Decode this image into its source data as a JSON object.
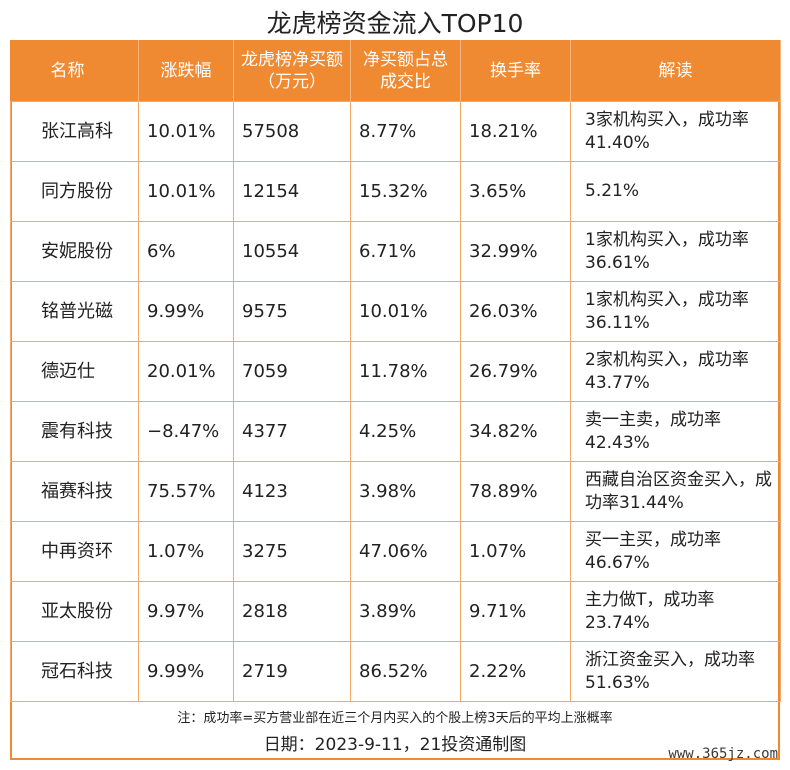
{
  "title": "龙虎榜资金流入TOP10",
  "headers": [
    "名称",
    "涨跌幅",
    "龙虎榜净买额（万元）",
    "净买额占总成交比",
    "换手率",
    "解读"
  ],
  "rows": [
    {
      "name": "张江高科",
      "change": "10.01%",
      "net": "57508",
      "ratio": "8.77%",
      "turnover": "18.21%",
      "read": "3家机构买入，成功率41.40%"
    },
    {
      "name": "同方股份",
      "change": "10.01%",
      "net": "12154",
      "ratio": "15.32%",
      "turnover": "3.65%",
      "read": "5.21%"
    },
    {
      "name": "安妮股份",
      "change": "6%",
      "net": "10554",
      "ratio": "6.71%",
      "turnover": "32.99%",
      "read": "1家机构买入，成功率36.61%"
    },
    {
      "name": "铭普光磁",
      "change": "9.99%",
      "net": "9575",
      "ratio": "10.01%",
      "turnover": "26.03%",
      "read": "1家机构买入，成功率36.11%"
    },
    {
      "name": "德迈仕",
      "change": "20.01%",
      "net": "7059",
      "ratio": "11.78%",
      "turnover": "26.79%",
      "read": "2家机构买入，成功率43.77%"
    },
    {
      "name": "震有科技",
      "change": "−8.47%",
      "net": "4377",
      "ratio": "4.25%",
      "turnover": "34.82%",
      "read": "卖一主卖，成功率42.43%"
    },
    {
      "name": "福赛科技",
      "change": "75.57%",
      "net": "4123",
      "ratio": "3.98%",
      "turnover": "78.89%",
      "read": "西藏自治区资金买入，成功率31.44%"
    },
    {
      "name": "中再资环",
      "change": "1.07%",
      "net": "3275",
      "ratio": "47.06%",
      "turnover": "1.07%",
      "read": "买一主买，成功率46.67%"
    },
    {
      "name": "亚太股份",
      "change": "9.97%",
      "net": "2818",
      "ratio": "3.89%",
      "turnover": "9.71%",
      "read": "主力做T，成功率23.74%"
    },
    {
      "name": "冠石科技",
      "change": "9.99%",
      "net": "2719",
      "ratio": "86.52%",
      "turnover": "2.22%",
      "read": "浙江资金买入，成功率51.63%"
    }
  ],
  "note": "注：成功率=买方营业部在近三个月内买入的个股上榜3天后的平均上涨概率",
  "date": "日期：2023-9-11，21投资通制图",
  "watermark": "www.365jz.com"
}
